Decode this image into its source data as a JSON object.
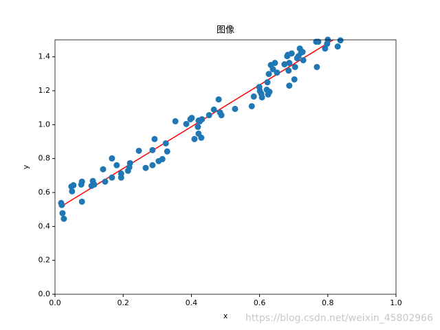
{
  "chart_data": {
    "type": "scatter",
    "title": "图像",
    "xlabel": "x",
    "ylabel": "y",
    "xlim": [
      0,
      1
    ],
    "ylim": [
      0,
      1.5
    ],
    "xticks": [
      {
        "value": 0,
        "label": "0.0"
      },
      0.2,
      0.4,
      0.6,
      0.8,
      {
        "value": 1,
        "label": "1.0"
      }
    ],
    "yticks": [
      {
        "value": 0,
        "label": "0.0"
      },
      0.2,
      0.4,
      0.6,
      0.8,
      {
        "value": 1,
        "label": "1.0"
      },
      1.2,
      1.4
    ],
    "points": {
      "color": "#1f77b4",
      "x": [
        0.018,
        0.02,
        0.022,
        0.026,
        0.048,
        0.05,
        0.054,
        0.077,
        0.079,
        0.079,
        0.107,
        0.111,
        0.115,
        0.141,
        0.147,
        0.167,
        0.167,
        0.181,
        0.194,
        0.194,
        0.214,
        0.218,
        0.22,
        0.246,
        0.266,
        0.286,
        0.286,
        0.292,
        0.304,
        0.315,
        0.325,
        0.329,
        0.353,
        0.385,
        0.397,
        0.401,
        0.409,
        0.419,
        0.421,
        0.421,
        0.425,
        0.429,
        0.431,
        0.452,
        0.466,
        0.48,
        0.484,
        0.488,
        0.528,
        0.577,
        0.583,
        0.599,
        0.601,
        0.605,
        0.607,
        0.621,
        0.623,
        0.625,
        0.627,
        0.629,
        0.633,
        0.639,
        0.645,
        0.651,
        0.673,
        0.681,
        0.683,
        0.685,
        0.687,
        0.687,
        0.694,
        0.702,
        0.704,
        0.71,
        0.714,
        0.718,
        0.722,
        0.726,
        0.728,
        0.766,
        0.768,
        0.772,
        0.792,
        0.798,
        0.8,
        0.829,
        0.837
      ],
      "y": [
        0.538,
        0.526,
        0.478,
        0.445,
        0.635,
        0.607,
        0.643,
        0.647,
        0.664,
        0.546,
        0.639,
        0.668,
        0.647,
        0.737,
        0.664,
        0.801,
        0.688,
        0.761,
        0.712,
        0.688,
        0.728,
        0.749,
        0.773,
        0.846,
        0.745,
        0.761,
        0.85,
        0.915,
        0.785,
        0.797,
        0.89,
        0.842,
        1.02,
        1.004,
        1.032,
        1.04,
        0.915,
        0.987,
        1.024,
        0.947,
        1.02,
        0.923,
        1.032,
        1.056,
        1.089,
        1.149,
        1.072,
        1.056,
        1.093,
        1.109,
        1.166,
        1.222,
        1.198,
        1.182,
        1.161,
        1.206,
        1.25,
        1.178,
        1.299,
        1.194,
        1.352,
        1.327,
        1.364,
        1.307,
        1.356,
        1.404,
        1.412,
        1.319,
        1.364,
        1.23,
        1.42,
        1.267,
        1.34,
        1.392,
        1.404,
        1.449,
        1.425,
        1.429,
        1.38,
        1.489,
        1.34,
        1.489,
        1.449,
        1.477,
        1.501,
        1.461,
        1.497
      ]
    },
    "fit_line": {
      "color": "#ff0000",
      "x": [
        0.02,
        0.84
      ],
      "y": [
        0.52,
        1.53
      ]
    },
    "watermark": "https://blog.csdn.net/weixin_45802966"
  }
}
